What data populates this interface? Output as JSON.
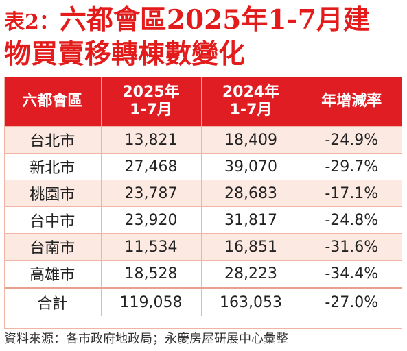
{
  "title": {
    "prefix": "表2：",
    "line1_rest": "六都會區2025年1-7月建",
    "line2": "物買賣移轉棟數變化"
  },
  "table": {
    "headers": [
      "六都會區",
      "2025年",
      "1-7月",
      "2024年",
      "1-7月",
      "年增減率"
    ],
    "rows": [
      {
        "city": "台北市",
        "y2025": "13,821",
        "y2024": "18,409",
        "change": "-24.9%"
      },
      {
        "city": "新北市",
        "y2025": "27,468",
        "y2024": "39,070",
        "change": "-29.7%"
      },
      {
        "city": "桃園市",
        "y2025": "23,787",
        "y2024": "28,683",
        "change": "-17.1%"
      },
      {
        "city": "台中市",
        "y2025": "23,920",
        "y2024": "31,817",
        "change": "-24.8%"
      },
      {
        "city": "台南市",
        "y2025": "11,534",
        "y2024": "16,851",
        "change": "-31.6%"
      },
      {
        "city": "高雄市",
        "y2025": "18,528",
        "y2024": "28,223",
        "change": "-34.4%"
      }
    ],
    "total": {
      "city": "合計",
      "y2025": "119,058",
      "y2024": "163,053",
      "change": "-27.0%"
    }
  },
  "source": "資料來源：各市政府地政局；永慶房屋研展中心彙整"
}
